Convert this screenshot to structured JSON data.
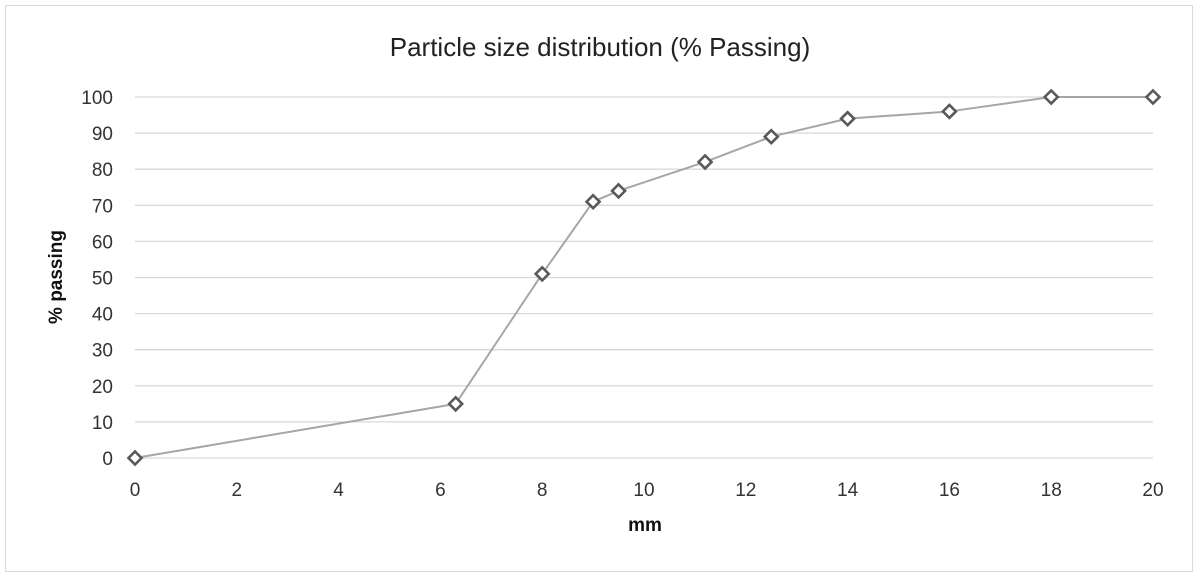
{
  "chart_data": {
    "type": "scatter",
    "title": "Particle size distribution (% Passing)",
    "xlabel": "mm",
    "ylabel": "% passing",
    "xlim": [
      0,
      20
    ],
    "ylim": [
      0,
      100
    ],
    "x_ticks": [
      0,
      2,
      4,
      6,
      8,
      10,
      12,
      14,
      16,
      18,
      20
    ],
    "y_ticks": [
      0,
      10,
      20,
      30,
      40,
      50,
      60,
      70,
      80,
      90,
      100
    ],
    "grid": "horizontal",
    "legend": "none",
    "series": [
      {
        "x": [
          0,
          6.3,
          8,
          9,
          9.5,
          11.2,
          12.5,
          14,
          16,
          18,
          20
        ],
        "y": [
          0,
          15,
          51,
          71,
          74,
          82,
          89,
          94,
          96,
          100,
          100
        ],
        "line_color": "#a6a6a6",
        "marker_color": "#595959",
        "marker": "diamond"
      }
    ]
  }
}
